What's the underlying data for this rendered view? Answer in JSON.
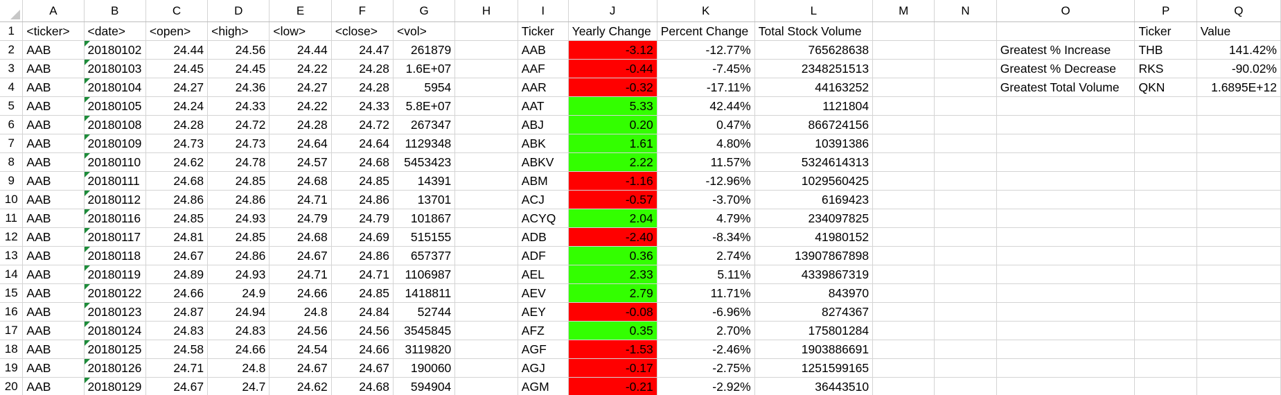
{
  "column_letters": [
    "A",
    "B",
    "C",
    "D",
    "E",
    "F",
    "G",
    "H",
    "I",
    "J",
    "K",
    "L",
    "M",
    "N",
    "O",
    "P",
    "Q"
  ],
  "colors": {
    "negative": "#ff0000",
    "positive": "#33ff00",
    "gridline": "#d4d4d4",
    "error_flag": "#1d8c3a"
  },
  "header_row": {
    "A": "<ticker>",
    "B": "<date>",
    "C": "<open>",
    "D": "<high>",
    "E": "<low>",
    "F": "<close>",
    "G": "<vol>",
    "I": "Ticker",
    "J": "Yearly Change",
    "K": "Percent Change",
    "L": "Total Stock Volume",
    "P": "Ticker",
    "Q": "Value"
  },
  "raw_rows": [
    {
      "ticker": "AAB",
      "date": "20180102",
      "open": "24.44",
      "high": "24.56",
      "low": "24.44",
      "close": "24.47",
      "vol": "261879"
    },
    {
      "ticker": "AAB",
      "date": "20180103",
      "open": "24.45",
      "high": "24.45",
      "low": "24.22",
      "close": "24.28",
      "vol": "1.6E+07"
    },
    {
      "ticker": "AAB",
      "date": "20180104",
      "open": "24.27",
      "high": "24.36",
      "low": "24.27",
      "close": "24.28",
      "vol": "5954"
    },
    {
      "ticker": "AAB",
      "date": "20180105",
      "open": "24.24",
      "high": "24.33",
      "low": "24.22",
      "close": "24.33",
      "vol": "5.8E+07"
    },
    {
      "ticker": "AAB",
      "date": "20180108",
      "open": "24.28",
      "high": "24.72",
      "low": "24.28",
      "close": "24.72",
      "vol": "267347"
    },
    {
      "ticker": "AAB",
      "date": "20180109",
      "open": "24.73",
      "high": "24.73",
      "low": "24.64",
      "close": "24.64",
      "vol": "1129348"
    },
    {
      "ticker": "AAB",
      "date": "20180110",
      "open": "24.62",
      "high": "24.78",
      "low": "24.57",
      "close": "24.68",
      "vol": "5453423"
    },
    {
      "ticker": "AAB",
      "date": "20180111",
      "open": "24.68",
      "high": "24.85",
      "low": "24.68",
      "close": "24.85",
      "vol": "14391"
    },
    {
      "ticker": "AAB",
      "date": "20180112",
      "open": "24.86",
      "high": "24.86",
      "low": "24.71",
      "close": "24.86",
      "vol": "13701"
    },
    {
      "ticker": "AAB",
      "date": "20180116",
      "open": "24.85",
      "high": "24.93",
      "low": "24.79",
      "close": "24.79",
      "vol": "101867"
    },
    {
      "ticker": "AAB",
      "date": "20180117",
      "open": "24.81",
      "high": "24.85",
      "low": "24.68",
      "close": "24.69",
      "vol": "515155"
    },
    {
      "ticker": "AAB",
      "date": "20180118",
      "open": "24.67",
      "high": "24.86",
      "low": "24.67",
      "close": "24.86",
      "vol": "657377"
    },
    {
      "ticker": "AAB",
      "date": "20180119",
      "open": "24.89",
      "high": "24.93",
      "low": "24.71",
      "close": "24.71",
      "vol": "1106987"
    },
    {
      "ticker": "AAB",
      "date": "20180122",
      "open": "24.66",
      "high": "24.9",
      "low": "24.66",
      "close": "24.85",
      "vol": "1418811"
    },
    {
      "ticker": "AAB",
      "date": "20180123",
      "open": "24.87",
      "high": "24.94",
      "low": "24.8",
      "close": "24.84",
      "vol": "52744"
    },
    {
      "ticker": "AAB",
      "date": "20180124",
      "open": "24.83",
      "high": "24.83",
      "low": "24.56",
      "close": "24.56",
      "vol": "3545845"
    },
    {
      "ticker": "AAB",
      "date": "20180125",
      "open": "24.58",
      "high": "24.66",
      "low": "24.54",
      "close": "24.66",
      "vol": "3119820"
    },
    {
      "ticker": "AAB",
      "date": "20180126",
      "open": "24.71",
      "high": "24.8",
      "low": "24.67",
      "close": "24.67",
      "vol": "190060"
    },
    {
      "ticker": "AAB",
      "date": "20180129",
      "open": "24.67",
      "high": "24.7",
      "low": "24.62",
      "close": "24.68",
      "vol": "594904"
    }
  ],
  "summary_rows": [
    {
      "ticker": "AAB",
      "yearly_change": "-3.12",
      "percent_change": "-12.77%",
      "total_volume": "765628638",
      "sign": "negative"
    },
    {
      "ticker": "AAF",
      "yearly_change": "-0.44",
      "percent_change": "-7.45%",
      "total_volume": "2348251513",
      "sign": "negative"
    },
    {
      "ticker": "AAR",
      "yearly_change": "-0.32",
      "percent_change": "-17.11%",
      "total_volume": "44163252",
      "sign": "negative"
    },
    {
      "ticker": "AAT",
      "yearly_change": "5.33",
      "percent_change": "42.44%",
      "total_volume": "1121804",
      "sign": "positive"
    },
    {
      "ticker": "ABJ",
      "yearly_change": "0.20",
      "percent_change": "0.47%",
      "total_volume": "866724156",
      "sign": "positive"
    },
    {
      "ticker": "ABK",
      "yearly_change": "1.61",
      "percent_change": "4.80%",
      "total_volume": "10391386",
      "sign": "positive"
    },
    {
      "ticker": "ABKV",
      "yearly_change": "2.22",
      "percent_change": "11.57%",
      "total_volume": "5324614313",
      "sign": "positive"
    },
    {
      "ticker": "ABM",
      "yearly_change": "-1.16",
      "percent_change": "-12.96%",
      "total_volume": "1029560425",
      "sign": "negative"
    },
    {
      "ticker": "ACJ",
      "yearly_change": "-0.57",
      "percent_change": "-3.70%",
      "total_volume": "6169423",
      "sign": "negative"
    },
    {
      "ticker": "ACYQ",
      "yearly_change": "2.04",
      "percent_change": "4.79%",
      "total_volume": "234097825",
      "sign": "positive"
    },
    {
      "ticker": "ADB",
      "yearly_change": "-2.40",
      "percent_change": "-8.34%",
      "total_volume": "41980152",
      "sign": "negative"
    },
    {
      "ticker": "ADF",
      "yearly_change": "0.36",
      "percent_change": "2.74%",
      "total_volume": "13907867898",
      "sign": "positive"
    },
    {
      "ticker": "AEL",
      "yearly_change": "2.33",
      "percent_change": "5.11%",
      "total_volume": "4339867319",
      "sign": "positive"
    },
    {
      "ticker": "AEV",
      "yearly_change": "2.79",
      "percent_change": "11.71%",
      "total_volume": "843970",
      "sign": "positive"
    },
    {
      "ticker": "AEY",
      "yearly_change": "-0.08",
      "percent_change": "-6.96%",
      "total_volume": "8274367",
      "sign": "negative"
    },
    {
      "ticker": "AFZ",
      "yearly_change": "0.35",
      "percent_change": "2.70%",
      "total_volume": "175801284",
      "sign": "positive"
    },
    {
      "ticker": "AGF",
      "yearly_change": "-1.53",
      "percent_change": "-2.46%",
      "total_volume": "1903886691",
      "sign": "negative"
    },
    {
      "ticker": "AGJ",
      "yearly_change": "-0.17",
      "percent_change": "-2.75%",
      "total_volume": "1251599165",
      "sign": "negative"
    },
    {
      "ticker": "AGM",
      "yearly_change": "-0.21",
      "percent_change": "-2.92%",
      "total_volume": "36443510",
      "sign": "negative"
    }
  ],
  "greatest": [
    {
      "label": "Greatest % Increase",
      "ticker": "THB",
      "value": "141.42%"
    },
    {
      "label": "Greatest % Decrease",
      "ticker": "RKS",
      "value": "-90.02%"
    },
    {
      "label": "Greatest Total Volume",
      "ticker": "QKN",
      "value": "1.6895E+12"
    }
  ]
}
